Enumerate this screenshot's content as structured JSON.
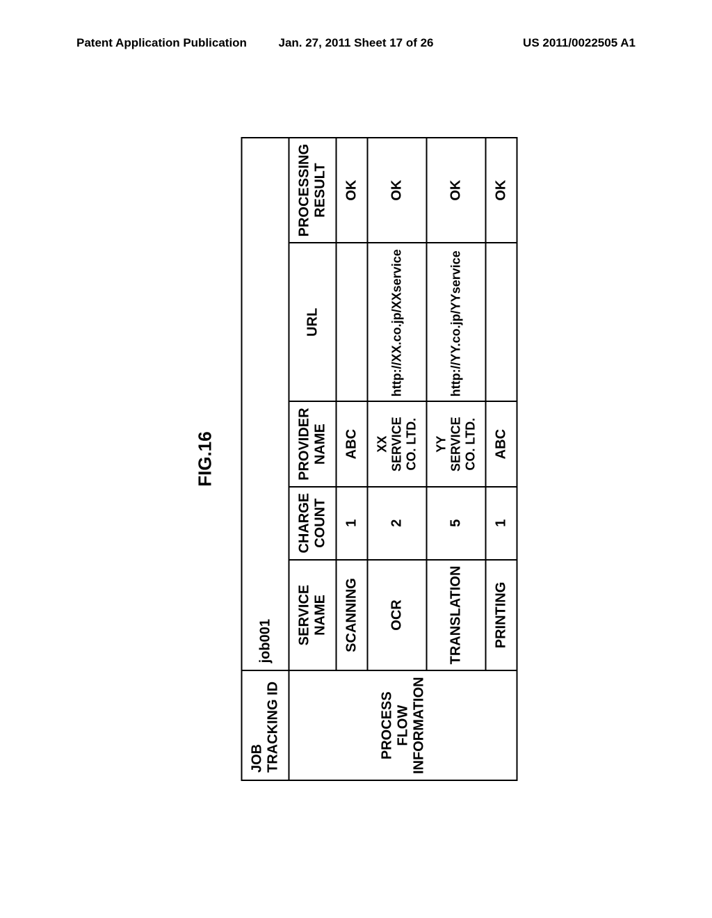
{
  "header": {
    "left": "Patent Application Publication",
    "center": "Jan. 27, 2011  Sheet 17 of 26",
    "right": "US 2011/0022505 A1"
  },
  "figure": {
    "label": "FIG.16",
    "job_tracking_label": "JOB TRACKING ID",
    "job_tracking_value": "job001",
    "process_flow_label_line1": "PROCESS FLOW",
    "process_flow_label_line2": "INFORMATION",
    "columns": {
      "service_name": "SERVICE NAME",
      "charge_count": "CHARGE COUNT",
      "provider_name": "PROVIDER NAME",
      "url": "URL",
      "result_line1": "PROCESSING",
      "result_line2": "RESULT"
    },
    "rows": [
      {
        "service": "SCANNING",
        "charge": "1",
        "provider": "ABC",
        "url": "",
        "result": "OK"
      },
      {
        "service": "OCR",
        "charge": "2",
        "provider": "XX SERVICE CO. LTD.",
        "url": "http://XX.co.jp/XXservice",
        "result": "OK"
      },
      {
        "service": "TRANSLATION",
        "charge": "5",
        "provider": "YY SERVICE CO. LTD.",
        "url": "http://YY.co.jp/YYservice",
        "result": "OK"
      },
      {
        "service": "PRINTING",
        "charge": "1",
        "provider": "ABC",
        "url": "",
        "result": "OK"
      }
    ]
  }
}
